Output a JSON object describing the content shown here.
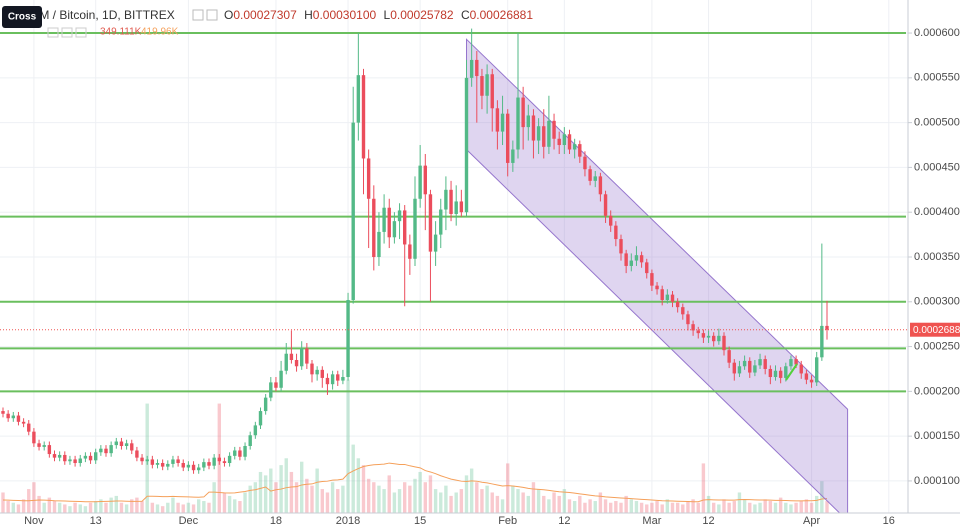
{
  "header": {
    "tooltip": "Cross",
    "title": "STEEM / Bitcoin, 1D, BITTREX",
    "ohlc_keys": [
      "O",
      "H",
      "L",
      "C"
    ],
    "ohlc_text": [
      "0.00027307",
      "0.00030100",
      "0.00025782",
      "0.00026881"
    ],
    "volume_legend": [
      "349.111K",
      "419.96K"
    ]
  },
  "chart_data": {
    "type": "candlestick",
    "categories": [
      null,
      null,
      null,
      null,
      null,
      null,
      "Nov",
      null,
      null,
      null,
      null,
      null,
      null,
      null,
      null,
      null,
      null,
      null,
      "13",
      null,
      null,
      null,
      null,
      null,
      null,
      null,
      null,
      null,
      null,
      null,
      null,
      null,
      null,
      null,
      null,
      null,
      "Dec",
      null,
      null,
      null,
      null,
      null,
      null,
      null,
      null,
      null,
      null,
      null,
      null,
      null,
      null,
      null,
      null,
      "18",
      null,
      null,
      null,
      null,
      null,
      null,
      null,
      null,
      null,
      null,
      null,
      null,
      null,
      "2018",
      null,
      null,
      null,
      null,
      null,
      null,
      null,
      null,
      null,
      null,
      null,
      null,
      null,
      "15",
      null,
      null,
      null,
      null,
      null,
      null,
      null,
      null,
      null,
      null,
      null,
      null,
      null,
      null,
      null,
      null,
      "Feb",
      null,
      null,
      null,
      null,
      null,
      null,
      null,
      null,
      null,
      null,
      "12",
      null,
      null,
      null,
      null,
      null,
      null,
      null,
      null,
      null,
      null,
      null,
      null,
      null,
      null,
      null,
      null,
      "Mar",
      null,
      null,
      null,
      null,
      null,
      null,
      null,
      null,
      null,
      null,
      "12",
      null,
      null,
      null,
      null,
      null,
      null,
      null,
      null,
      null,
      null,
      null,
      null,
      null,
      null,
      null,
      null,
      null,
      null,
      null,
      "Apr",
      null,
      null,
      null,
      null,
      null,
      null,
      null,
      null,
      null,
      null,
      null,
      null,
      null,
      null,
      "16"
    ],
    "open": [
      0.000178,
      0.000175,
      0.00017,
      0.000173,
      0.000166,
      0.000164,
      0.000155,
      0.000142,
      0.000138,
      0.00014,
      0.00013,
      0.000126,
      0.000129,
      0.000122,
      0.000124,
      0.00012,
      0.000125,
      0.000128,
      0.000123,
      0.000132,
      0.000136,
      0.000131,
      0.00014,
      0.000144,
      0.000139,
      0.000142,
      0.000134,
      0.000126,
      0.000122,
      0.000124,
      0.000118,
      0.00012,
      0.000116,
      0.000119,
      0.000124,
      0.00012,
      0.000115,
      0.000118,
      0.000112,
      0.000115,
      0.000121,
      0.000117,
      0.000126,
      0.000122,
      0.00012,
      0.000128,
      0.000134,
      0.000127,
      0.000139,
      0.000151,
      0.000162,
      0.000178,
      0.000193,
      0.00021,
      0.000204,
      0.000223,
      0.000242,
      0.000235,
      0.000228,
      0.000248,
      0.000231,
      0.000219,
      0.000224,
      0.000215,
      0.000208,
      0.000219,
      0.000212,
      0.000216,
      0.000302,
      0.0005,
      0.000553,
      0.00046,
      0.000415,
      0.00035,
      0.000378,
      0.000405,
      0.000372,
      0.00039,
      0.000402,
      0.000364,
      0.000348,
      0.000415,
      0.000452,
      0.00042,
      0.000356,
      0.000375,
      0.000403,
      0.000425,
      0.000398,
      0.000412,
      0.0004,
      0.00055,
      0.00057,
      0.000552,
      0.00053,
      0.000554,
      0.000516,
      0.00049,
      0.00051,
      0.000455,
      0.00047,
      0.000528,
      0.000495,
      0.000508,
      0.00048,
      0.000496,
      0.000473,
      0.000502,
      0.000482,
      0.000475,
      0.000487,
      0.00047,
      0.000476,
      0.000462,
      0.000448,
      0.000435,
      0.00044,
      0.00042,
      0.000396,
      0.000385,
      0.00037,
      0.000354,
      0.00034,
      0.000346,
      0.000352,
      0.000344,
      0.000332,
      0.000318,
      0.000314,
      0.000302,
      0.000308,
      0.0003,
      0.000294,
      0.000286,
      0.000275,
      0.000268,
      0.000265,
      0.00026,
      0.000262,
      0.000256,
      0.000262,
      0.000246,
      0.000232,
      0.00022,
      0.000228,
      0.000234,
      0.000221,
      0.000229,
      0.000236,
      0.000225,
      0.000216,
      0.000223,
      0.000215,
      0.000228,
      0.000236,
      0.00023,
      0.00022,
      0.000213,
      0.00021,
      0.000238,
      0.00027307,
      null,
      null,
      null,
      null,
      null,
      null,
      null,
      null,
      null,
      null,
      null,
      null
    ],
    "high": [
      0.000182,
      0.000179,
      0.000177,
      0.000177,
      0.00017,
      0.000168,
      0.000159,
      0.000146,
      0.000144,
      0.000144,
      0.000134,
      0.000133,
      0.000133,
      0.000128,
      0.000128,
      0.000129,
      0.000132,
      0.000132,
      0.000136,
      0.00014,
      0.00014,
      0.000144,
      0.000148,
      0.000148,
      0.000146,
      0.000146,
      0.000138,
      0.00013,
      0.000128,
      0.000128,
      0.000124,
      0.000124,
      0.000123,
      0.000128,
      0.000128,
      0.000124,
      0.000122,
      0.000122,
      0.000119,
      0.000125,
      0.000125,
      0.00013,
      0.00013,
      0.000126,
      0.000132,
      0.000138,
      0.000138,
      0.000143,
      0.000155,
      0.000166,
      0.000182,
      0.000197,
      0.000216,
      0.000216,
      0.000234,
      0.000254,
      0.000268,
      0.000242,
      0.000256,
      0.000254,
      0.000235,
      0.000228,
      0.000228,
      0.00022,
      0.000223,
      0.000223,
      0.000224,
      0.00031,
      0.00054,
      0.0006,
      0.00056,
      0.00047,
      0.00043,
      0.0004,
      0.00042,
      0.000415,
      0.0004,
      0.00041,
      0.000408,
      0.000375,
      0.00044,
      0.000475,
      0.000465,
      0.000425,
      0.00039,
      0.000415,
      0.00044,
      0.000435,
      0.00043,
      0.000425,
      0.00057,
      0.000605,
      0.00058,
      0.00056,
      0.000565,
      0.00056,
      0.000525,
      0.00053,
      0.000515,
      0.00048,
      0.0006,
      0.00054,
      0.00052,
      0.000515,
      0.000505,
      0.000515,
      0.00053,
      0.00051,
      0.00049,
      0.000495,
      0.000492,
      0.000482,
      0.00048,
      0.000468,
      0.000452,
      0.000446,
      0.000444,
      0.000424,
      0.000402,
      0.00039,
      0.000375,
      0.000358,
      0.000354,
      0.000362,
      0.000356,
      0.000348,
      0.000336,
      0.000322,
      0.000318,
      0.000314,
      0.000312,
      0.000304,
      0.000298,
      0.00029,
      0.000279,
      0.000272,
      0.000269,
      0.000268,
      0.000266,
      0.00027,
      0.000266,
      0.00025,
      0.000236,
      0.000234,
      0.00024,
      0.000238,
      0.000235,
      0.000242,
      0.00024,
      0.000229,
      0.000229,
      0.000227,
      0.000232,
      0.00024,
      0.00024,
      0.000234,
      0.000224,
      0.000218,
      0.000244,
      0.000365,
      0.000301,
      null,
      null,
      null,
      null,
      null,
      null,
      null,
      null,
      null,
      null,
      null,
      null
    ],
    "low": [
      0.000171,
      0.000166,
      0.000166,
      0.000162,
      0.00016,
      0.000151,
      0.000138,
      0.000134,
      0.000134,
      0.000126,
      0.000122,
      0.000122,
      0.000118,
      0.000118,
      0.000116,
      0.000116,
      0.000121,
      0.000119,
      0.000119,
      0.000128,
      0.000127,
      0.000127,
      0.000136,
      0.000135,
      0.000135,
      0.00013,
      0.000122,
      0.000118,
      0.000118,
      0.000114,
      0.000114,
      0.000112,
      0.000112,
      0.000115,
      0.000116,
      0.000111,
      0.000111,
      0.000108,
      0.000108,
      0.000111,
      0.000113,
      0.000113,
      0.000118,
      0.000116,
      0.000116,
      0.000124,
      0.000123,
      0.000123,
      0.000135,
      0.000147,
      0.000158,
      0.000174,
      0.000189,
      0.0002,
      0.0002,
      0.000219,
      0.000231,
      0.000222,
      0.000224,
      0.000225,
      0.00021,
      0.000212,
      0.000204,
      0.000196,
      0.000202,
      0.000206,
      0.000208,
      0.000212,
      0.000298,
      0.00048,
      0.00042,
      0.00036,
      0.000335,
      0.00034,
      0.000365,
      0.00036,
      0.000365,
      0.00037,
      0.000295,
      0.00033,
      0.00034,
      0.000405,
      0.00038,
      0.0003,
      0.00034,
      0.00036,
      0.00038,
      0.00039,
      0.000385,
      0.000395,
      0.000395,
      0.00054,
      0.0005,
      0.000515,
      0.00051,
      0.00049,
      0.00047,
      0.000475,
      0.00044,
      0.000445,
      0.00046,
      0.00047,
      0.00048,
      0.00046,
      0.000465,
      0.00046,
      0.000465,
      0.00047,
      0.000465,
      0.000465,
      0.000465,
      0.00046,
      0.000455,
      0.00044,
      0.00043,
      0.000428,
      0.000412,
      0.000388,
      0.000378,
      0.000362,
      0.000346,
      0.000332,
      0.000334,
      0.00034,
      0.000338,
      0.000326,
      0.000312,
      0.000308,
      0.000296,
      0.000298,
      0.000294,
      0.000288,
      0.00028,
      0.000268,
      0.000262,
      0.000259,
      0.000254,
      0.000254,
      0.00025,
      0.000252,
      0.00024,
      0.000226,
      0.000212,
      0.000216,
      0.000224,
      0.000215,
      0.000217,
      0.000225,
      0.000219,
      0.000208,
      0.000212,
      0.000209,
      0.000211,
      0.000224,
      0.000226,
      0.000214,
      0.000208,
      0.000204,
      0.000206,
      0.000234,
      0.00025782,
      null,
      null,
      null,
      null,
      null,
      null,
      null,
      null,
      null,
      null,
      null,
      null
    ],
    "close": [
      0.000175,
      0.00017,
      0.000173,
      0.000166,
      0.000164,
      0.000155,
      0.000142,
      0.000138,
      0.00014,
      0.00013,
      0.000126,
      0.000129,
      0.000122,
      0.000124,
      0.00012,
      0.000125,
      0.000128,
      0.000123,
      0.000132,
      0.000136,
      0.000131,
      0.00014,
      0.000144,
      0.000139,
      0.000142,
      0.000134,
      0.000126,
      0.000122,
      0.000124,
      0.000118,
      0.00012,
      0.000116,
      0.000119,
      0.000124,
      0.00012,
      0.000115,
      0.000118,
      0.000112,
      0.000115,
      0.000121,
      0.000117,
      0.000126,
      0.000122,
      0.00012,
      0.000128,
      0.000134,
      0.000127,
      0.000139,
      0.000151,
      0.000162,
      0.000178,
      0.000193,
      0.00021,
      0.000204,
      0.000223,
      0.000242,
      0.000235,
      0.000228,
      0.000248,
      0.000231,
      0.000219,
      0.000224,
      0.000215,
      0.000208,
      0.000219,
      0.000212,
      0.000216,
      0.000302,
      0.0005,
      0.000553,
      0.00046,
      0.000415,
      0.00035,
      0.000378,
      0.000405,
      0.000372,
      0.00039,
      0.000402,
      0.000364,
      0.000348,
      0.000415,
      0.000452,
      0.00042,
      0.000356,
      0.000375,
      0.000403,
      0.000425,
      0.000398,
      0.000412,
      0.0004,
      0.00055,
      0.00057,
      0.000552,
      0.00053,
      0.000554,
      0.000516,
      0.00049,
      0.00051,
      0.000455,
      0.00047,
      0.000528,
      0.000495,
      0.000508,
      0.00048,
      0.000496,
      0.000473,
      0.000502,
      0.000482,
      0.000475,
      0.000487,
      0.00047,
      0.000476,
      0.000462,
      0.000448,
      0.000435,
      0.00044,
      0.00042,
      0.000396,
      0.000385,
      0.00037,
      0.000354,
      0.00034,
      0.000346,
      0.000352,
      0.000344,
      0.000332,
      0.000318,
      0.000314,
      0.000302,
      0.000308,
      0.0003,
      0.000294,
      0.000286,
      0.000275,
      0.000268,
      0.000265,
      0.00026,
      0.000262,
      0.000256,
      0.000262,
      0.000246,
      0.000232,
      0.00022,
      0.000228,
      0.000234,
      0.000221,
      0.000229,
      0.000236,
      0.000225,
      0.000216,
      0.000223,
      0.000215,
      0.000228,
      0.000236,
      0.00023,
      0.00022,
      0.000213,
      0.00021,
      0.000238,
      0.00027307,
      0.00026881,
      null,
      null,
      null,
      null,
      null,
      null,
      null,
      null,
      null,
      null,
      null,
      null
    ],
    "volume": {
      "lim": [
        0,
        15000
      ],
      "ma_color": "#f5a05a",
      "values": [
        600,
        350,
        300,
        250,
        400,
        700,
        900,
        500,
        300,
        450,
        350,
        300,
        250,
        200,
        300,
        250,
        200,
        300,
        350,
        400,
        300,
        450,
        500,
        300,
        250,
        400,
        450,
        350,
        3200,
        300,
        250,
        200,
        300,
        450,
        300,
        250,
        300,
        250,
        400,
        350,
        300,
        900,
        3200,
        600,
        500,
        400,
        350,
        600,
        800,
        900,
        1200,
        1100,
        1300,
        900,
        1400,
        1600,
        1200,
        900,
        1500,
        1000,
        800,
        1300,
        700,
        600,
        900,
        700,
        800,
        3900,
        2000,
        1600,
        1400,
        1000,
        900,
        800,
        700,
        1100,
        600,
        700,
        900,
        800,
        1000,
        1200,
        900,
        1100,
        700,
        600,
        800,
        500,
        600,
        700,
        1100,
        1300,
        900,
        700,
        800,
        600,
        500,
        400,
        1450,
        800,
        700,
        600,
        500,
        900,
        700,
        500,
        400,
        600,
        500,
        700,
        400,
        350,
        500,
        300,
        400,
        350,
        600,
        400,
        300,
        350,
        300,
        500,
        400,
        350,
        300,
        250,
        300,
        350,
        250,
        400,
        300,
        300,
        250,
        350,
        400,
        300,
        1450,
        500,
        300,
        250,
        400,
        300,
        350,
        600,
        400,
        300,
        250,
        300,
        400,
        350,
        300,
        450,
        300,
        250,
        300,
        350,
        400,
        300,
        500,
        930,
        349.111,
        null,
        null,
        null,
        null,
        null,
        null,
        null,
        null,
        null,
        null,
        null,
        null
      ],
      "ma": [
        380,
        375,
        370,
        365,
        360,
        360,
        370,
        380,
        375,
        370,
        360,
        355,
        350,
        345,
        340,
        335,
        330,
        330,
        330,
        335,
        340,
        345,
        350,
        350,
        345,
        340,
        340,
        345,
        490,
        490,
        485,
        480,
        480,
        485,
        480,
        475,
        470,
        465,
        460,
        470,
        610,
        610,
        600,
        590,
        585,
        590,
        610,
        630,
        660,
        680,
        720,
        760,
        640,
        680,
        700,
        740,
        760,
        770,
        820,
        840,
        850,
        900,
        920,
        930,
        960,
        970,
        990,
        1150,
        1230,
        1300,
        1360,
        1390,
        1410,
        1420,
        1430,
        1460,
        1440,
        1420,
        1420,
        1380,
        1350,
        1320,
        1240,
        1200,
        1150,
        1090,
        1040,
        990,
        960,
        930,
        920,
        940,
        930,
        900,
        880,
        850,
        820,
        790,
        800,
        790,
        770,
        750,
        720,
        700,
        690,
        680,
        660,
        640,
        620,
        610,
        600,
        580,
        560,
        540,
        520,
        500,
        490,
        470,
        460,
        450,
        440,
        430,
        420,
        410,
        400,
        390,
        380,
        370,
        360,
        355,
        350,
        345,
        340,
        335,
        330,
        330,
        380,
        390,
        385,
        380,
        380,
        375,
        375,
        390,
        395,
        390,
        385,
        380,
        380,
        375,
        370,
        370,
        365,
        360,
        355,
        355,
        360,
        360,
        370,
        410,
        419.96,
        null,
        null,
        null,
        null,
        null,
        null,
        null,
        null,
        null,
        null,
        null,
        null
      ]
    },
    "up_color": "#53b987",
    "down_color": "#eb4d5c",
    "ylim": [
      6.42e-05,
      0.0006369
    ],
    "yticks": [
      {
        "value": 0.0001,
        "label": "0.00010000"
      },
      {
        "value": 0.00015,
        "label": "0.00015000"
      },
      {
        "value": 0.0002,
        "label": "0.00020000"
      },
      {
        "value": 0.00025,
        "label": "0.00025000"
      },
      {
        "value": 0.0003,
        "label": "0.00030000"
      },
      {
        "value": 0.00035,
        "label": "0.00035000"
      },
      {
        "value": 0.0004,
        "label": "0.00040000"
      },
      {
        "value": 0.00045,
        "label": "0.00045000"
      },
      {
        "value": 0.0005,
        "label": "0.00050000"
      },
      {
        "value": 0.00055,
        "label": "0.00055000"
      },
      {
        "value": 0.0006,
        "label": "0.00060000"
      }
    ],
    "grid": true,
    "hlines": [
      0.0006,
      0.000395,
      0.0003,
      0.000248,
      0.0002
    ],
    "hline_color": "#6abf5e",
    "channel": {
      "from": 90,
      "to": 164,
      "upper": [
        0.000593,
        0.00018
      ],
      "lower": [
        0.00047,
        5.55e-05
      ],
      "color": "#9575cd"
    },
    "last_color": "#ef5350"
  }
}
